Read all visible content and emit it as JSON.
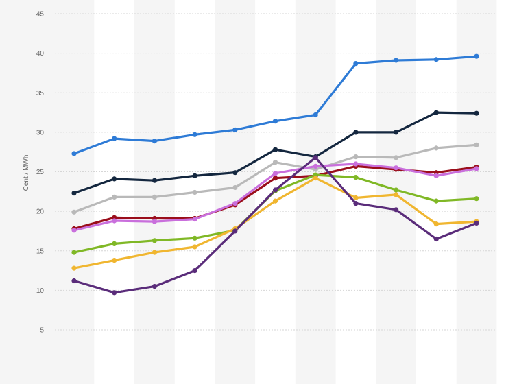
{
  "chart_data": {
    "type": "line",
    "title": "",
    "xlabel": "",
    "ylabel": "Cent / MWh",
    "ylim": [
      5,
      45
    ],
    "yticks": [
      5,
      10,
      15,
      20,
      25,
      30,
      35,
      40,
      45
    ],
    "grid": true,
    "legend": "none",
    "x": [
      1,
      2,
      3,
      4,
      5,
      6,
      7,
      8,
      9,
      10,
      11,
      12
    ],
    "series": [
      {
        "color": "#2e7bd6",
        "values": [
          27.3,
          29.2,
          28.9,
          29.7,
          30.3,
          31.4,
          32.2,
          38.7,
          39.1,
          39.2,
          39.6,
          null
        ]
      },
      {
        "color": "#14273f",
        "values": [
          22.3,
          24.1,
          23.9,
          24.5,
          24.9,
          27.8,
          26.9,
          30.0,
          30.0,
          32.5,
          32.4,
          null
        ]
      },
      {
        "color": "#b9b9b9",
        "values": [
          19.9,
          21.8,
          21.8,
          22.4,
          23.0,
          26.2,
          25.3,
          26.9,
          26.8,
          28.0,
          28.4,
          null
        ]
      },
      {
        "color": "#9a0e1b",
        "values": [
          17.8,
          19.2,
          19.1,
          19.1,
          20.8,
          24.2,
          24.5,
          25.7,
          25.3,
          24.9,
          25.6,
          null
        ]
      },
      {
        "color": "#c96fdc",
        "values": [
          17.6,
          18.8,
          18.7,
          19.0,
          21.0,
          24.8,
          25.7,
          26.0,
          25.5,
          24.5,
          25.4,
          null
        ]
      },
      {
        "color": "#80b826",
        "values": [
          14.8,
          15.9,
          16.3,
          16.6,
          17.6,
          22.6,
          24.6,
          24.3,
          22.7,
          21.3,
          21.6,
          null
        ]
      },
      {
        "color": "#f0b630",
        "values": [
          12.8,
          13.8,
          14.8,
          15.5,
          17.8,
          21.3,
          24.2,
          21.7,
          22.1,
          18.4,
          18.7,
          null
        ]
      },
      {
        "color": "#5a2c7a",
        "values": [
          11.2,
          9.7,
          10.5,
          12.5,
          17.5,
          22.7,
          26.8,
          21.0,
          20.2,
          16.5,
          18.5,
          null
        ]
      }
    ]
  }
}
